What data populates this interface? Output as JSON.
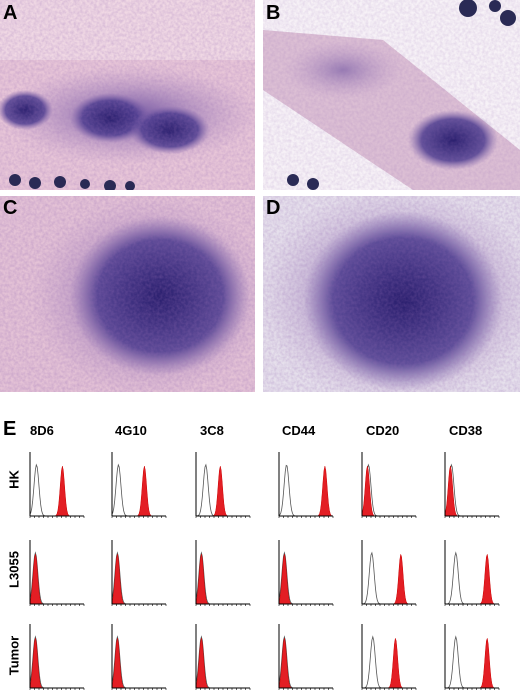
{
  "panels": [
    {
      "label": "A"
    },
    {
      "label": "B"
    },
    {
      "label": "C"
    },
    {
      "label": "D"
    }
  ],
  "flow": {
    "label": "E",
    "columns": [
      "8D6",
      "4G10",
      "3C8",
      "CD44",
      "CD20",
      "CD38"
    ],
    "rows": [
      "HK",
      "L3055",
      "Tumor"
    ]
  }
}
